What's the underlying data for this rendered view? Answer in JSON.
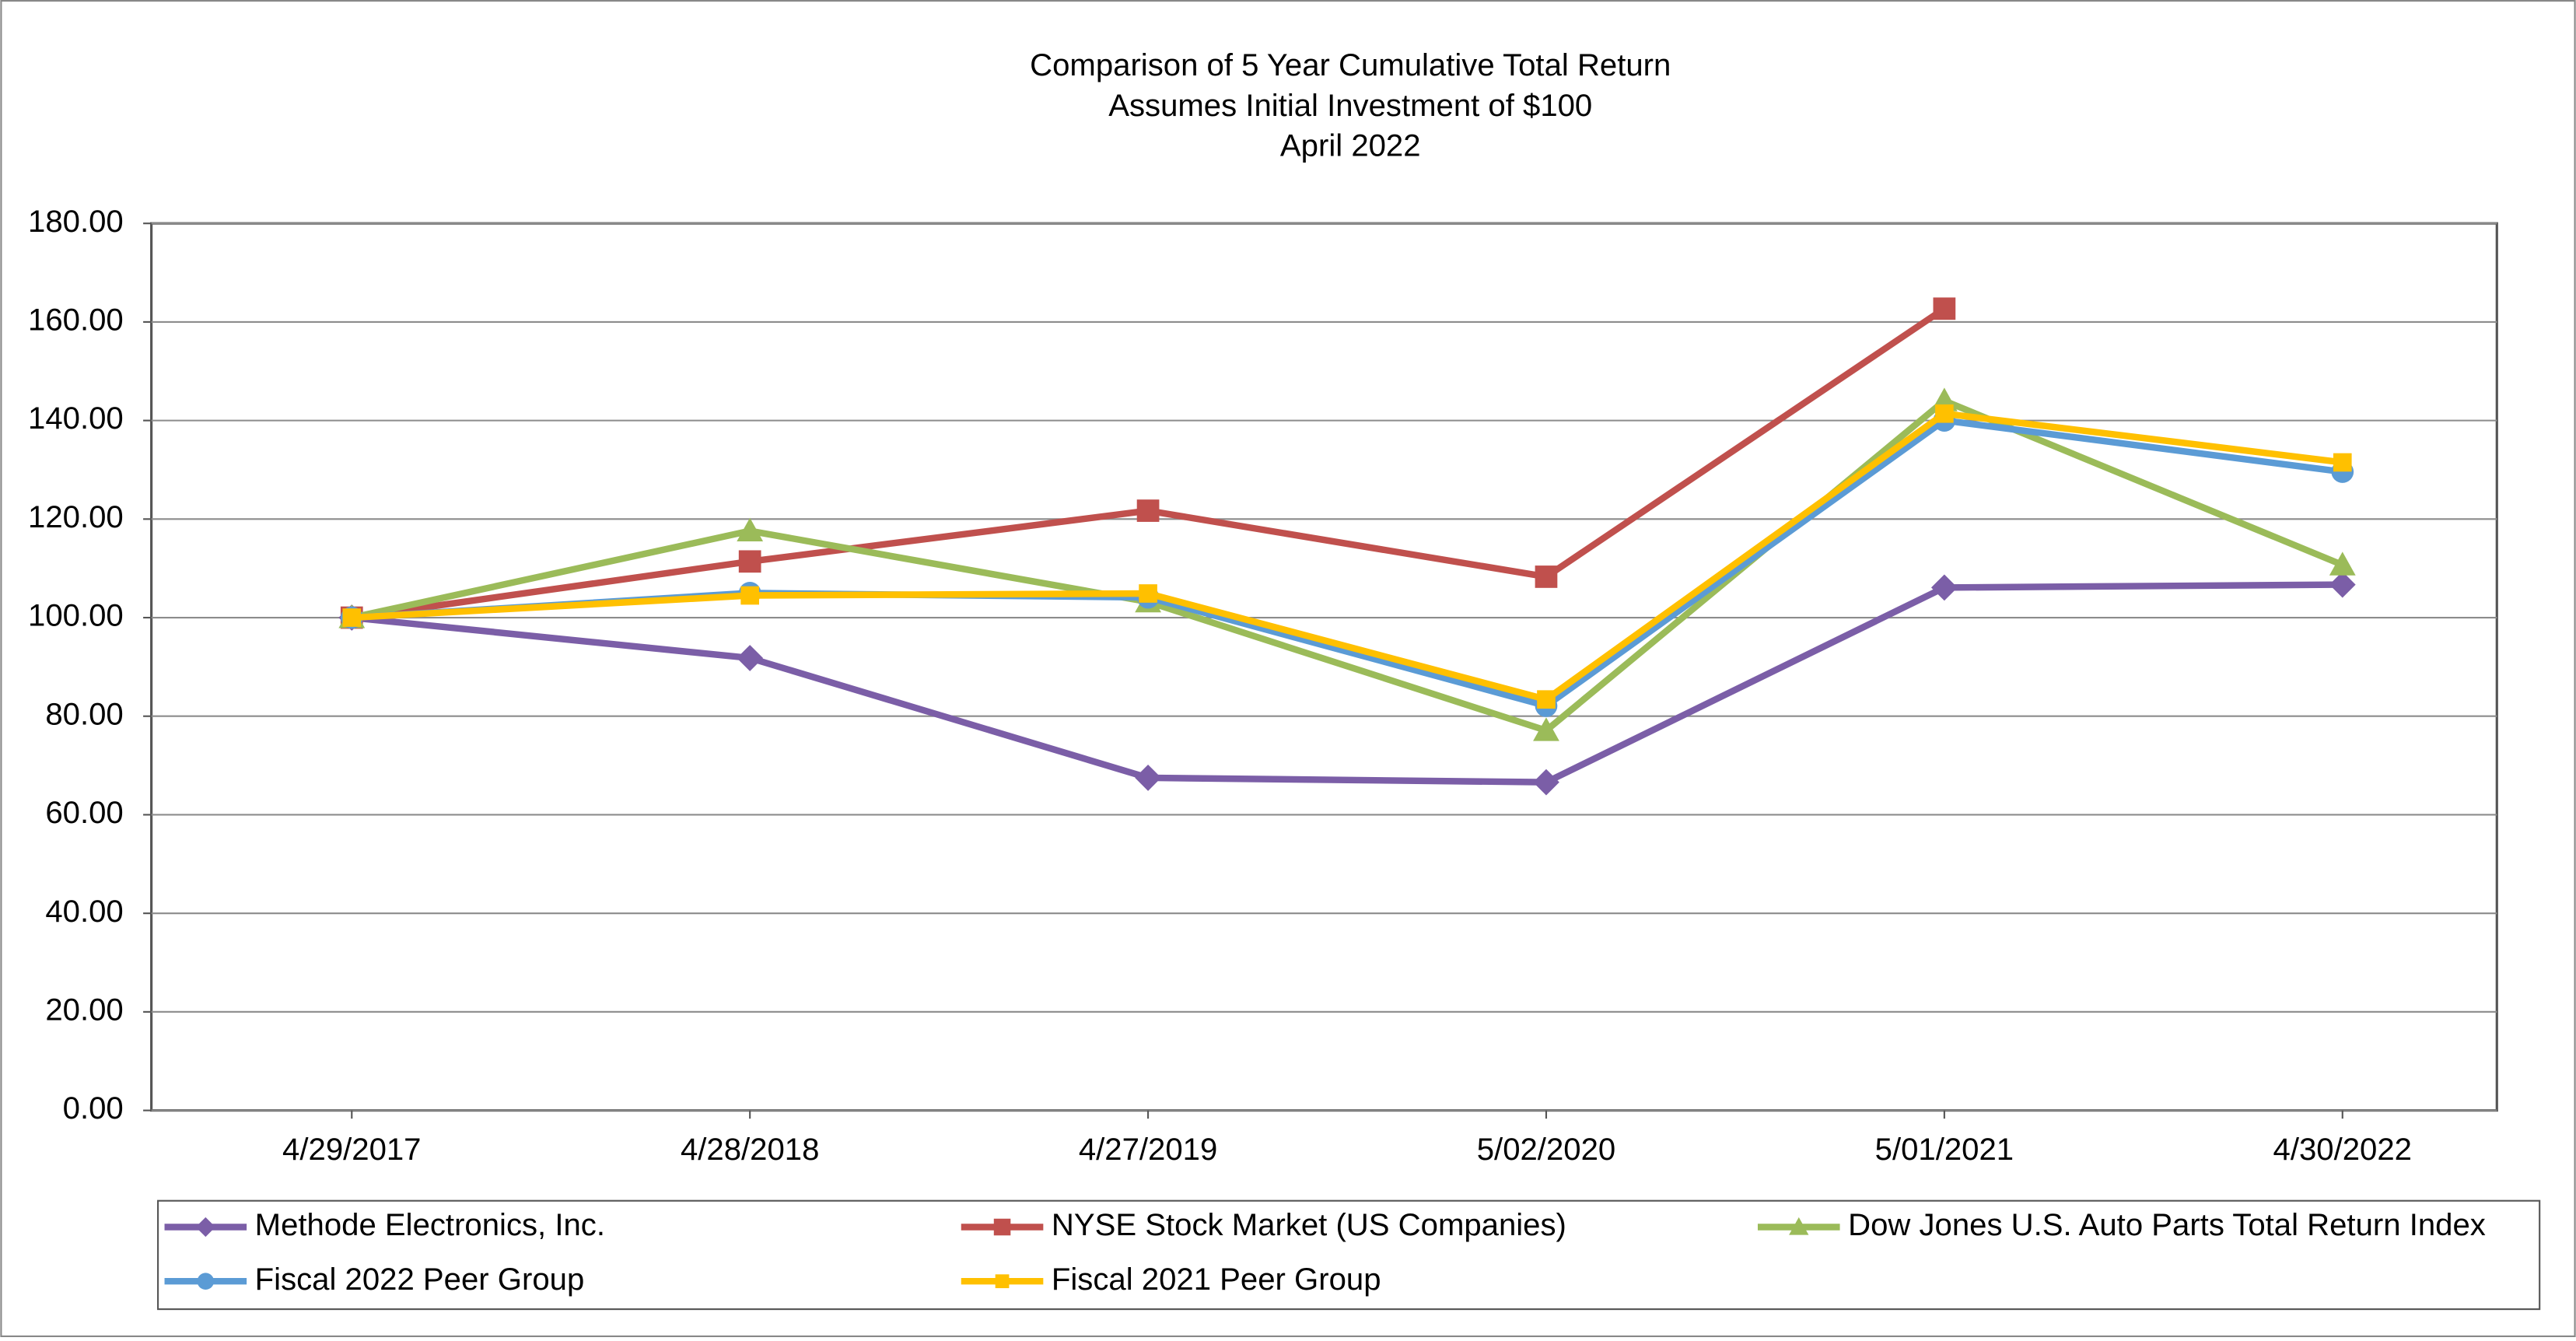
{
  "chart_data": {
    "type": "line",
    "title_lines": [
      "Comparison of 5 Year Cumulative Total Return",
      "Assumes Initial Investment of $100",
      "April 2022"
    ],
    "categories": [
      "4/29/2017",
      "4/28/2018",
      "4/27/2019",
      "5/02/2020",
      "5/01/2021",
      "4/30/2022"
    ],
    "series": [
      {
        "name": "Methode Electronics, Inc.",
        "color": "#7b5ea7",
        "marker": "diamond",
        "values": [
          100,
          91.8,
          67.5,
          66.6,
          106.1,
          106.7
        ]
      },
      {
        "name": "NYSE Stock Market (US Companies)",
        "color": "#c0504d",
        "marker": "square",
        "values": [
          100,
          111.4,
          121.7,
          108.3,
          162.7,
          null
        ]
      },
      {
        "name": "Dow Jones U.S. Auto Parts Total Return Index",
        "color": "#9bbb59",
        "marker": "triangle",
        "values": [
          100,
          117.6,
          103.2,
          77.1,
          144.0,
          110.7
        ]
      },
      {
        "name": "Fiscal 2022 Peer Group",
        "color": "#5b9bd5",
        "marker": "circle",
        "values": [
          100,
          105.0,
          104.1,
          82.1,
          140.0,
          129.6
        ]
      },
      {
        "name": "Fiscal 2021 Peer Group",
        "color": "#ffc000",
        "marker": "small-square",
        "values": [
          100,
          104.5,
          104.9,
          83.4,
          141.4,
          131.5
        ]
      }
    ],
    "ylim": [
      0,
      180
    ],
    "yticks": [
      {
        "value": 0,
        "label": "0.00"
      },
      {
        "value": 20,
        "label": "20.00"
      },
      {
        "value": 40,
        "label": "40.00"
      },
      {
        "value": 60,
        "label": "60.00"
      },
      {
        "value": 80,
        "label": "80.00"
      },
      {
        "value": 100,
        "label": "100.00"
      },
      {
        "value": 120,
        "label": "120.00"
      },
      {
        "value": 140,
        "label": "140.00"
      },
      {
        "value": 160,
        "label": "160.00"
      },
      {
        "value": 180,
        "label": "180.00"
      }
    ],
    "grid": true,
    "legend": "bottom"
  }
}
